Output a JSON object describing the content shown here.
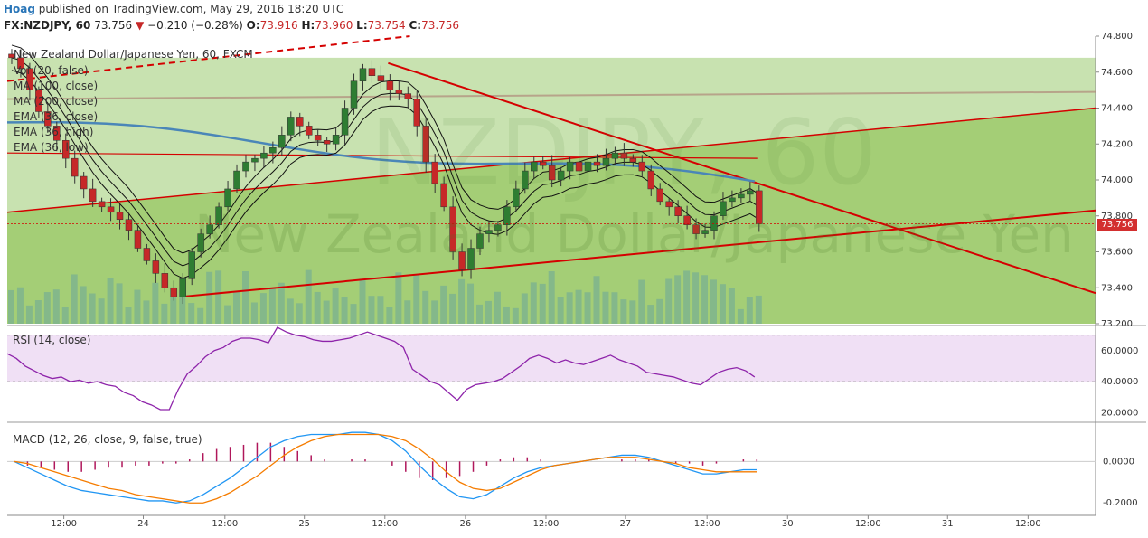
{
  "header": {
    "author": "Hoag",
    "published": " published on TradingView.com, May 29, 2016 18:20 UTC",
    "symbol": "FX:NZDJPY, 60",
    "last": "73.756",
    "change": "−0.210 (−0.28%)",
    "o_label": "O:",
    "o": "73.916",
    "h_label": "H:",
    "h": "73.960",
    "l_label": "L:",
    "l": "73.754",
    "c_label": "C:",
    "c": "73.756"
  },
  "watermark": "New Zealand Dollar/Japanese Yen",
  "watermark_big": "NZDJPY, 60",
  "legend": [
    "New Zealand Dollar/Japanese Yen, 60, FXCM",
    "Vol (20, false)",
    "MA (100, close)",
    "MA (200, close)",
    "EMA (36, close)",
    "EMA (36, high)",
    "EMA (36, low)"
  ],
  "price_tag": "73.756",
  "rsi_label": "RSI (14, close)",
  "macd_label": "MACD (12, 26, close, 9, false, true)",
  "colors": {
    "up": "#2e7d32",
    "down": "#c62828",
    "channel_fill": "#9ac967",
    "rsi_band": "#f0e0f5",
    "rsi_line": "#8e24aa",
    "macd_line": "#2196f3",
    "signal_line": "#f57c00",
    "hist": "#b0175b",
    "trend": "#d50000"
  },
  "chart_data": [
    {
      "type": "candlestick",
      "title": "New Zealand Dollar/Japanese Yen, 60, FXCM",
      "ylim": [
        73.2,
        74.8
      ],
      "yticks": [
        74.8,
        74.6,
        74.4,
        74.2,
        74.0,
        73.8,
        73.6,
        73.4,
        73.2
      ],
      "ytick_labels": [
        "74.800",
        "74.600",
        "74.400",
        "74.200",
        "74.000",
        "73.800",
        "73.600",
        "73.400",
        "73.200"
      ],
      "xticks": [
        "12:00",
        "24",
        "12:00",
        "25",
        "12:00",
        "26",
        "12:00",
        "27",
        "12:00",
        "30",
        "12:00",
        "31",
        "12:00"
      ],
      "close_path": [
        74.68,
        74.62,
        74.5,
        74.38,
        74.3,
        74.22,
        74.12,
        74.02,
        73.95,
        73.88,
        73.85,
        73.82,
        73.78,
        73.72,
        73.62,
        73.55,
        73.48,
        73.4,
        73.35,
        73.45,
        73.6,
        73.7,
        73.75,
        73.85,
        73.95,
        74.05,
        74.1,
        74.12,
        74.15,
        74.18,
        74.25,
        74.35,
        74.3,
        74.25,
        74.22,
        74.2,
        74.25,
        74.4,
        74.55,
        74.62,
        74.58,
        74.55,
        74.5,
        74.48,
        74.45,
        74.3,
        74.1,
        73.98,
        73.85,
        73.6,
        73.5,
        73.62,
        73.7,
        73.72,
        73.75,
        73.85,
        73.95,
        74.05,
        74.1,
        74.08,
        74.0,
        74.05,
        74.1,
        74.05,
        74.1,
        74.08,
        74.12,
        74.15,
        74.12,
        74.1,
        74.05,
        73.95,
        73.88,
        73.85,
        73.8,
        73.75,
        73.7,
        73.72,
        73.8,
        73.88,
        73.9,
        73.92,
        73.94,
        73.756
      ],
      "last": 73.756,
      "series": [
        {
          "name": "MA (100, close)",
          "from": 74.32,
          "to": 73.98
        },
        {
          "name": "MA (200, close)",
          "from": 74.15,
          "to": 74.15
        }
      ],
      "trendlines": [
        {
          "from": [
            0,
            74.45
          ],
          "to": [
            1,
            74.45
          ]
        },
        {
          "from": [
            0,
            73.82
          ],
          "to": [
            1,
            74.4
          ]
        },
        {
          "from": [
            0.16,
            73.35
          ],
          "to": [
            1,
            73.83
          ]
        },
        {
          "from": [
            0.35,
            74.65
          ],
          "to": [
            1,
            73.37
          ]
        }
      ]
    },
    {
      "type": "line",
      "title": "RSI (14, close)",
      "ylim": [
        15,
        75
      ],
      "ytick_labels": [
        "60.0000",
        "40.0000",
        "20.0000"
      ],
      "yticks": [
        60,
        40,
        20
      ],
      "band": [
        40,
        70
      ],
      "values": [
        58,
        55,
        50,
        47,
        44,
        42,
        43,
        40,
        41,
        39,
        40,
        38,
        37,
        33,
        31,
        27,
        25,
        22,
        22,
        35,
        45,
        50,
        56,
        60,
        62,
        66,
        68,
        68,
        67,
        65,
        75,
        72,
        70,
        69,
        67,
        66,
        66,
        67,
        68,
        70,
        72,
        70,
        68,
        66,
        62,
        48,
        44,
        40,
        38,
        33,
        28,
        35,
        38,
        39,
        40,
        42,
        46,
        50,
        55,
        57,
        55,
        52,
        54,
        52,
        51,
        53,
        55,
        57,
        54,
        52,
        50,
        46,
        45,
        44,
        43,
        41,
        39,
        38,
        42,
        46,
        48,
        49,
        47,
        43
      ]
    },
    {
      "type": "line",
      "title": "MACD (12, 26, close, 9, false, true)",
      "ylim": [
        -0.26,
        0.18
      ],
      "ytick_labels": [
        "0.0000",
        "-0.2000"
      ],
      "yticks": [
        0,
        -0.2
      ],
      "series": [
        {
          "name": "MACD",
          "values": [
            0.0,
            -0.03,
            -0.06,
            -0.09,
            -0.12,
            -0.14,
            -0.15,
            -0.16,
            -0.17,
            -0.18,
            -0.19,
            -0.19,
            -0.2,
            -0.19,
            -0.16,
            -0.12,
            -0.08,
            -0.03,
            0.02,
            0.07,
            0.1,
            0.12,
            0.13,
            0.13,
            0.13,
            0.14,
            0.14,
            0.13,
            0.1,
            0.05,
            -0.02,
            -0.08,
            -0.13,
            -0.17,
            -0.18,
            -0.16,
            -0.12,
            -0.08,
            -0.05,
            -0.03,
            -0.02,
            -0.01,
            0.0,
            0.01,
            0.02,
            0.03,
            0.03,
            0.02,
            0.0,
            -0.02,
            -0.04,
            -0.06,
            -0.06,
            -0.05,
            -0.04,
            -0.04
          ]
        },
        {
          "name": "Signal",
          "values": [
            0.0,
            -0.01,
            -0.03,
            -0.05,
            -0.07,
            -0.09,
            -0.11,
            -0.13,
            -0.14,
            -0.16,
            -0.17,
            -0.18,
            -0.19,
            -0.2,
            -0.2,
            -0.18,
            -0.15,
            -0.11,
            -0.07,
            -0.02,
            0.03,
            0.07,
            0.1,
            0.12,
            0.13,
            0.13,
            0.13,
            0.13,
            0.12,
            0.1,
            0.06,
            0.01,
            -0.05,
            -0.1,
            -0.13,
            -0.14,
            -0.13,
            -0.1,
            -0.07,
            -0.04,
            -0.02,
            -0.01,
            0.0,
            0.01,
            0.02,
            0.02,
            0.02,
            0.01,
            0.0,
            -0.01,
            -0.03,
            -0.04,
            -0.05,
            -0.05,
            -0.05,
            -0.05
          ]
        }
      ],
      "histogram": [
        0.0,
        -0.02,
        -0.03,
        -0.04,
        -0.05,
        -0.05,
        -0.04,
        -0.03,
        -0.03,
        -0.02,
        -0.02,
        -0.01,
        -0.01,
        0.01,
        0.04,
        0.06,
        0.07,
        0.08,
        0.09,
        0.09,
        0.07,
        0.05,
        0.03,
        0.01,
        0.0,
        0.01,
        0.01,
        0.0,
        -0.02,
        -0.05,
        -0.08,
        -0.09,
        -0.08,
        -0.07,
        -0.05,
        -0.02,
        0.01,
        0.02,
        0.02,
        0.01,
        0.0,
        0.0,
        0.0,
        0.0,
        0.0,
        0.01,
        0.01,
        0.01,
        0.0,
        -0.01,
        -0.01,
        -0.02,
        -0.01,
        0.0,
        0.01,
        0.01
      ]
    }
  ]
}
